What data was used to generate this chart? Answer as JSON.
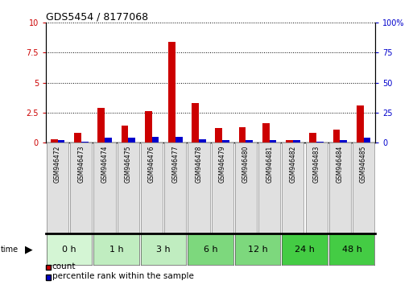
{
  "title": "GDS5454 / 8177068",
  "samples": [
    "GSM946472",
    "GSM946473",
    "GSM946474",
    "GSM946475",
    "GSM946476",
    "GSM946477",
    "GSM946478",
    "GSM946479",
    "GSM946480",
    "GSM946481",
    "GSM946482",
    "GSM946483",
    "GSM946484",
    "GSM946485"
  ],
  "count_values": [
    0.3,
    0.8,
    2.9,
    1.4,
    2.6,
    8.4,
    3.3,
    1.2,
    1.3,
    1.6,
    0.2,
    0.8,
    1.1,
    3.1
  ],
  "percentile_values": [
    2,
    1,
    4,
    4,
    5,
    5,
    3,
    2,
    2,
    2,
    2,
    1,
    2,
    4
  ],
  "time_groups": [
    {
      "label": "0 h",
      "start": 0,
      "end": 2,
      "color": "#d4f5d4"
    },
    {
      "label": "1 h",
      "start": 2,
      "end": 4,
      "color": "#c0edc0"
    },
    {
      "label": "3 h",
      "start": 4,
      "end": 6,
      "color": "#c0edc0"
    },
    {
      "label": "6 h",
      "start": 6,
      "end": 8,
      "color": "#7dd87d"
    },
    {
      "label": "12 h",
      "start": 8,
      "end": 10,
      "color": "#7dd87d"
    },
    {
      "label": "24 h",
      "start": 10,
      "end": 12,
      "color": "#44cc44"
    },
    {
      "label": "48 h",
      "start": 12,
      "end": 14,
      "color": "#44cc44"
    }
  ],
  "bar_color_count": "#cc0000",
  "bar_color_pct": "#0000cc",
  "ylim_left": [
    0,
    10
  ],
  "ylim_right": [
    0,
    100
  ],
  "yticks_left": [
    0,
    2.5,
    5,
    7.5,
    10
  ],
  "yticks_right": [
    0,
    25,
    50,
    75,
    100
  ],
  "sample_box_color": "#e0e0e0",
  "sample_box_edge": "#888888",
  "bar_width": 0.3,
  "legend_count_label": "count",
  "legend_pct_label": "percentile rank within the sample"
}
